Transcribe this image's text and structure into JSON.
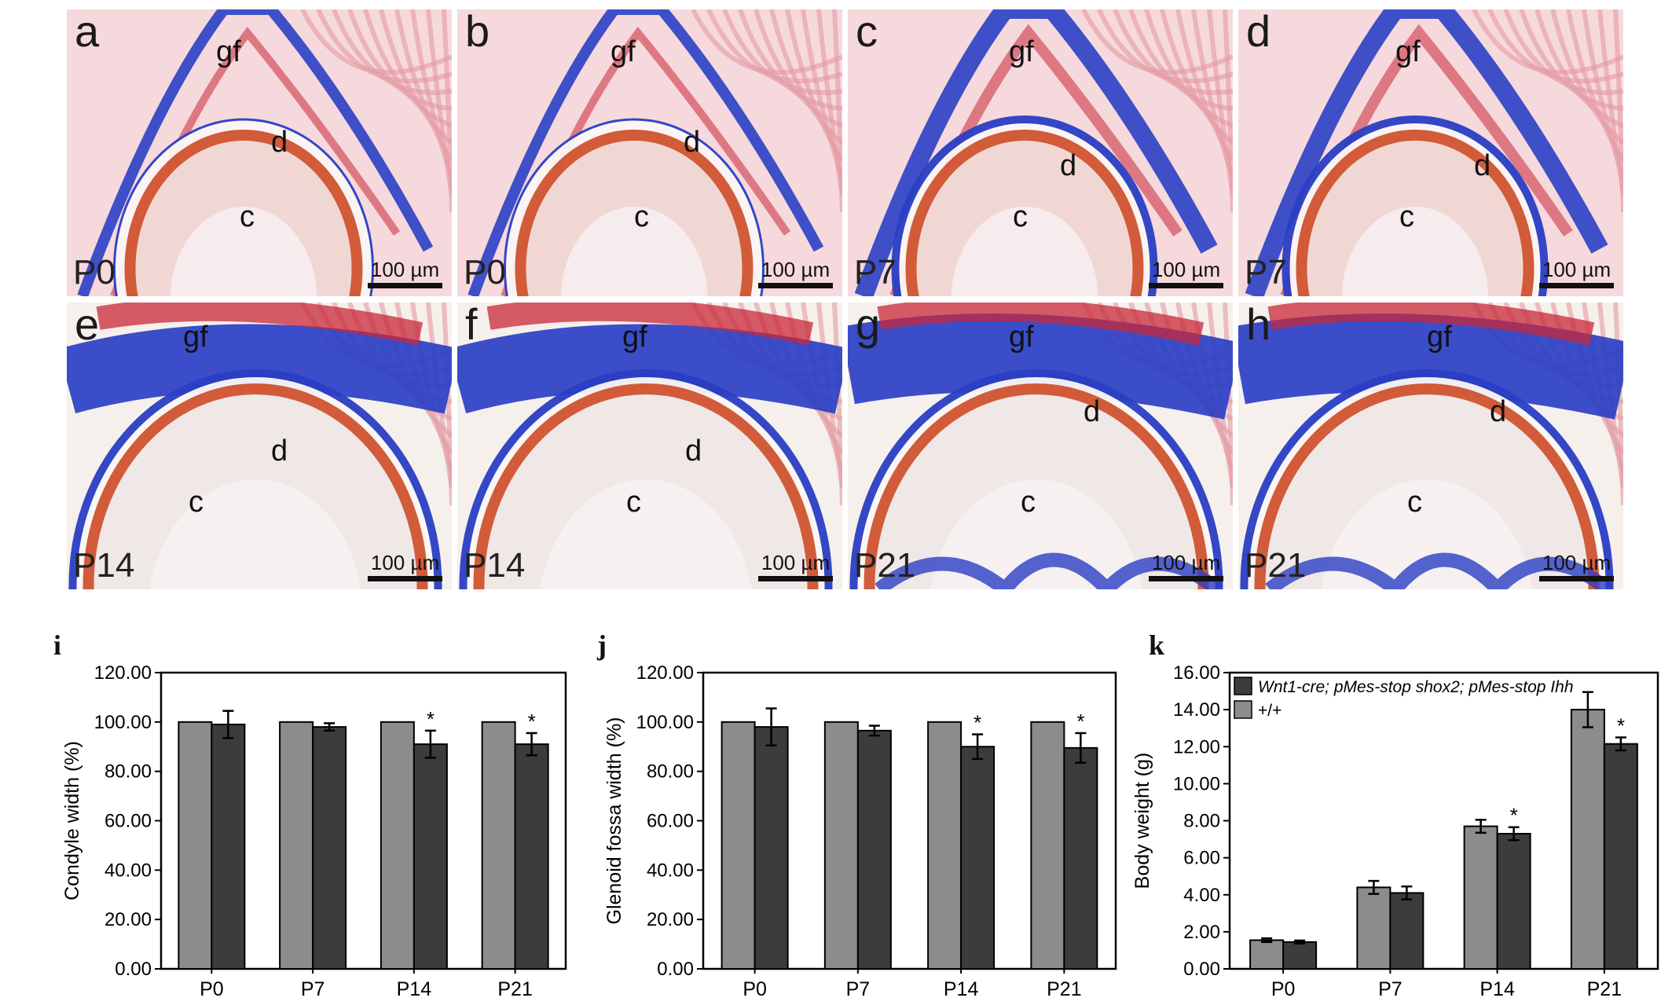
{
  "panels": [
    {
      "label": "a",
      "stage": "P0",
      "gf": "gf",
      "d": "d",
      "c": "c",
      "scale": "100 µm"
    },
    {
      "label": "b",
      "stage": "P0",
      "gf": "gf",
      "d": "d",
      "c": "c",
      "scale": "100 µm"
    },
    {
      "label": "c",
      "stage": "P7",
      "gf": "gf",
      "d": "d",
      "c": "c",
      "scale": "100 µm"
    },
    {
      "label": "d",
      "stage": "P7",
      "gf": "gf",
      "d": "d",
      "c": "c",
      "scale": "100 µm"
    },
    {
      "label": "e",
      "stage": "P14",
      "gf": "gf",
      "d": "d",
      "c": "c",
      "scale": "100 µm"
    },
    {
      "label": "f",
      "stage": "P14",
      "gf": "gf",
      "d": "d",
      "c": "c",
      "scale": "100 µm"
    },
    {
      "label": "g",
      "stage": "P21",
      "gf": "gf",
      "d": "d",
      "c": "c",
      "scale": "100 µm"
    },
    {
      "label": "h",
      "stage": "P21",
      "gf": "gf",
      "d": "d",
      "c": "c",
      "scale": "100 µm"
    }
  ],
  "colors": {
    "wildtype": "#8c8c8c",
    "mutant": "#3c3c3c",
    "stain_blue": "#2a3fc4",
    "stain_red": "#c8283a",
    "tissue_bg": "#f7e3e6"
  },
  "chart_data": [
    {
      "label": "i",
      "type": "bar",
      "categories": [
        "P0",
        "P7",
        "P14",
        "P21"
      ],
      "ylabel": "Condyle width (%)",
      "ylim": [
        0,
        120
      ],
      "yticks": [
        "0.00",
        "20.00",
        "40.00",
        "60.00",
        "80.00",
        "100.00",
        "120.00"
      ],
      "series": [
        {
          "values": [
            100,
            100,
            100,
            100
          ],
          "errors": [
            0,
            0,
            0,
            0
          ]
        },
        {
          "values": [
            99,
            98,
            91,
            91
          ],
          "errors": [
            5.5,
            1.5,
            5.5,
            4.5
          ]
        }
      ],
      "significance": [
        [
          "",
          "",
          "*",
          "*"
        ]
      ]
    },
    {
      "label": "j",
      "type": "bar",
      "categories": [
        "P0",
        "P7",
        "P14",
        "P21"
      ],
      "ylabel": "Glenoid fossa width (%)",
      "ylim": [
        0,
        120
      ],
      "yticks": [
        "0.00",
        "20.00",
        "40.00",
        "60.00",
        "80.00",
        "100.00",
        "120.00"
      ],
      "series": [
        {
          "values": [
            100,
            100,
            100,
            100
          ],
          "errors": [
            0,
            0,
            0,
            0
          ]
        },
        {
          "values": [
            98,
            96.5,
            90,
            89.5
          ],
          "errors": [
            7.5,
            2,
            5,
            6
          ]
        }
      ],
      "significance": [
        [
          "",
          "",
          "*",
          "*"
        ]
      ]
    },
    {
      "label": "k",
      "type": "bar",
      "categories": [
        "P0",
        "P7",
        "P14",
        "P21"
      ],
      "ylabel": "Body weight (g)",
      "ylim": [
        0,
        16
      ],
      "yticks": [
        "0.00",
        "2.00",
        "4.00",
        "6.00",
        "8.00",
        "10.00",
        "12.00",
        "14.00",
        "16.00"
      ],
      "legend_position": "top-left",
      "series": [
        {
          "name": "+/+",
          "values": [
            1.55,
            4.4,
            7.7,
            14.0
          ],
          "errors": [
            0.1,
            0.35,
            0.35,
            0.95
          ]
        },
        {
          "name": "Wnt1-cre; pMes-stop shox2; pMes-stop Ihh",
          "values": [
            1.45,
            4.1,
            7.3,
            12.15
          ],
          "errors": [
            0.08,
            0.35,
            0.35,
            0.35
          ]
        }
      ],
      "significance": [
        [
          "",
          "",
          "*",
          "*"
        ]
      ]
    }
  ]
}
